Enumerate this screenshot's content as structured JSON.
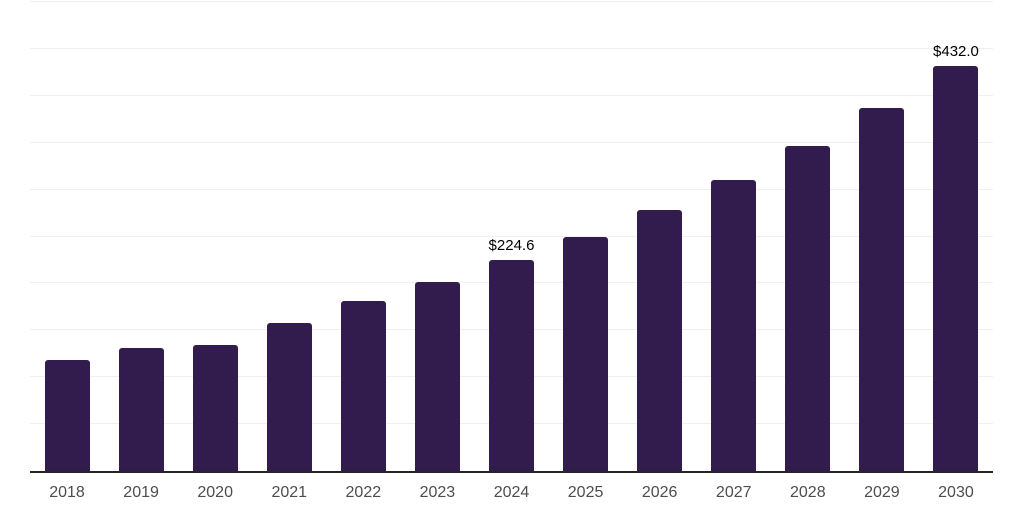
{
  "colors": {
    "background": "#ffffff",
    "bar": "#321b4d",
    "gridline": "#f0f0f0",
    "axis_line": "#262626",
    "tick_label": "#4d4d4d",
    "data_label": "#000000"
  },
  "chart_data": {
    "type": "bar",
    "title": "",
    "xlabel": "",
    "ylabel": "",
    "categories": [
      "2018",
      "2019",
      "2020",
      "2021",
      "2022",
      "2023",
      "2024",
      "2025",
      "2026",
      "2027",
      "2028",
      "2029",
      "2030"
    ],
    "values": [
      118.6,
      131.5,
      133.9,
      157.4,
      181.3,
      201.8,
      224.6,
      250.0,
      277.8,
      310.3,
      346.2,
      386.8,
      432.0
    ],
    "data_labels": {
      "2024": "$224.6",
      "2030": "$432.0"
    },
    "ylim": [
      0,
      500
    ],
    "grid_step": 50,
    "grid": true,
    "legend": false,
    "y_axis_labels_visible": false
  }
}
